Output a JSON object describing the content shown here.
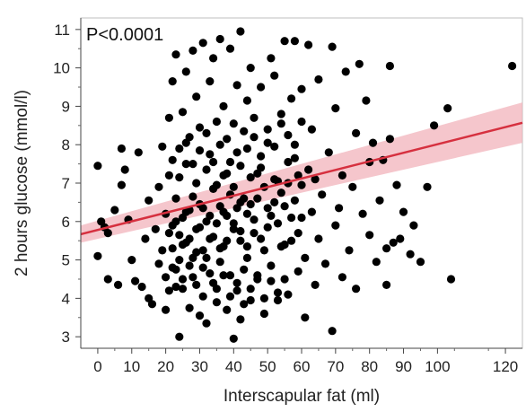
{
  "chart_data": {
    "type": "scatter",
    "title": "",
    "xlabel": "Interscapular fat (ml)",
    "ylabel": "2 hours glucose (mmol/l)",
    "annotation": "P<0.0001",
    "xlim": [
      -5,
      125
    ],
    "ylim": [
      2.7,
      11.3
    ],
    "x_ticks": [
      0,
      10,
      20,
      30,
      40,
      50,
      60,
      70,
      80,
      90,
      100,
      120
    ],
    "y_ticks": [
      3,
      4,
      5,
      6,
      7,
      8,
      9,
      10,
      11
    ],
    "grid": false,
    "colors": {
      "points": "#000000",
      "fit_line": "#d6303f",
      "confidence_band": "#f2b3bb",
      "axis": "#444444",
      "frame": "#bfbfbf"
    },
    "fit": {
      "x": [
        -5,
        125
      ],
      "y": [
        5.67,
        8.57
      ],
      "ci_lower": [
        5.45,
        8.05
      ],
      "ci_upper": [
        5.9,
        9.1
      ]
    },
    "points": [
      [
        0,
        7.45
      ],
      [
        0,
        5.1
      ],
      [
        1,
        6.0
      ],
      [
        2,
        5.85
      ],
      [
        3,
        4.5
      ],
      [
        3,
        5.7
      ],
      [
        5,
        6.3
      ],
      [
        6,
        4.35
      ],
      [
        7,
        6.95
      ],
      [
        7,
        7.9
      ],
      [
        8,
        7.35
      ],
      [
        9,
        6.05
      ],
      [
        10,
        5.0
      ],
      [
        11,
        4.45
      ],
      [
        12,
        7.8
      ],
      [
        13,
        4.3
      ],
      [
        14,
        5.55
      ],
      [
        15,
        4.0
      ],
      [
        15,
        6.55
      ],
      [
        16,
        3.85
      ],
      [
        17,
        5.8
      ],
      [
        18,
        6.9
      ],
      [
        18,
        4.9
      ],
      [
        19,
        7.95
      ],
      [
        19,
        5.25
      ],
      [
        20,
        4.55
      ],
      [
        20,
        6.2
      ],
      [
        20,
        3.7
      ],
      [
        21,
        5.7
      ],
      [
        21,
        7.2
      ],
      [
        21,
        8.7
      ],
      [
        22,
        4.8
      ],
      [
        22,
        9.65
      ],
      [
        22,
        5.9
      ],
      [
        23,
        6.6
      ],
      [
        23,
        4.3
      ],
      [
        23,
        10.35
      ],
      [
        24,
        3.0
      ],
      [
        24,
        5.0
      ],
      [
        24,
        7.9
      ],
      [
        25,
        6.1
      ],
      [
        25,
        8.85
      ],
      [
        25,
        4.25
      ],
      [
        26,
        5.45
      ],
      [
        26,
        7.5
      ],
      [
        26,
        9.9
      ],
      [
        27,
        3.75
      ],
      [
        27,
        6.3
      ],
      [
        27,
        8.2
      ],
      [
        28,
        5.05
      ],
      [
        28,
        10.45
      ],
      [
        28,
        4.55
      ],
      [
        29,
        7.0
      ],
      [
        29,
        5.8
      ],
      [
        29,
        9.25
      ],
      [
        30,
        3.55
      ],
      [
        30,
        6.45
      ],
      [
        30,
        8.45
      ],
      [
        31,
        5.25
      ],
      [
        31,
        4.8
      ],
      [
        31,
        10.65
      ],
      [
        32,
        7.35
      ],
      [
        32,
        6.0
      ],
      [
        32,
        3.35
      ],
      [
        33,
        5.55
      ],
      [
        33,
        9.65
      ],
      [
        33,
        7.75
      ],
      [
        34,
        4.4
      ],
      [
        34,
        6.85
      ],
      [
        34,
        10.25
      ],
      [
        35,
        5.95
      ],
      [
        35,
        3.9
      ],
      [
        35,
        8.6
      ],
      [
        36,
        6.4
      ],
      [
        36,
        4.95
      ],
      [
        36,
        10.75
      ],
      [
        37,
        7.2
      ],
      [
        37,
        5.35
      ],
      [
        37,
        9.0
      ],
      [
        38,
        3.7
      ],
      [
        38,
        6.15
      ],
      [
        38,
        8.15
      ],
      [
        39,
        4.6
      ],
      [
        39,
        7.55
      ],
      [
        39,
        10.5
      ],
      [
        40,
        5.8
      ],
      [
        40,
        2.95
      ],
      [
        40,
        6.9
      ],
      [
        41,
        4.2
      ],
      [
        41,
        9.55
      ],
      [
        41,
        7.8
      ],
      [
        42,
        5.5
      ],
      [
        42,
        3.45
      ],
      [
        42,
        6.5
      ],
      [
        42,
        10.95
      ],
      [
        43,
        8.35
      ],
      [
        43,
        4.75
      ],
      [
        44,
        6.2
      ],
      [
        44,
        5.05
      ],
      [
        44,
        9.15
      ],
      [
        45,
        7.15
      ],
      [
        45,
        3.95
      ],
      [
        45,
        10.0
      ],
      [
        46,
        5.7
      ],
      [
        46,
        8.7
      ],
      [
        47,
        4.5
      ],
      [
        47,
        6.6
      ],
      [
        48,
        9.5
      ],
      [
        48,
        7.4
      ],
      [
        49,
        5.25
      ],
      [
        49,
        3.6
      ],
      [
        50,
        8.05
      ],
      [
        50,
        6.35
      ],
      [
        51,
        10.25
      ],
      [
        51,
        4.85
      ],
      [
        52,
        7.1
      ],
      [
        52,
        9.8
      ],
      [
        53,
        5.95
      ],
      [
        53,
        4.15
      ],
      [
        54,
        8.55
      ],
      [
        54,
        6.75
      ],
      [
        55,
        10.7
      ],
      [
        55,
        5.4
      ],
      [
        56,
        7.55
      ],
      [
        56,
        4.1
      ],
      [
        57,
        9.2
      ],
      [
        57,
        6.1
      ],
      [
        58,
        8.0
      ],
      [
        58,
        10.7
      ],
      [
        59,
        5.7
      ],
      [
        59,
        4.7
      ],
      [
        60,
        6.95
      ],
      [
        60,
        9.45
      ],
      [
        61,
        3.5
      ],
      [
        61,
        5.05
      ],
      [
        62,
        7.35
      ],
      [
        62,
        10.6
      ],
      [
        63,
        6.25
      ],
      [
        63,
        8.4
      ],
      [
        64,
        4.35
      ],
      [
        64,
        7.1
      ],
      [
        65,
        5.55
      ],
      [
        65,
        9.7
      ],
      [
        66,
        6.7
      ],
      [
        67,
        4.9
      ],
      [
        68,
        7.8
      ],
      [
        69,
        3.15
      ],
      [
        69,
        10.55
      ],
      [
        70,
        5.9
      ],
      [
        70,
        8.95
      ],
      [
        71,
        6.35
      ],
      [
        72,
        4.55
      ],
      [
        72,
        7.2
      ],
      [
        73,
        9.9
      ],
      [
        74,
        5.25
      ],
      [
        75,
        6.9
      ],
      [
        76,
        8.3
      ],
      [
        76,
        4.25
      ],
      [
        77,
        10.1
      ],
      [
        78,
        6.2
      ],
      [
        79,
        9.15
      ],
      [
        80,
        7.55
      ],
      [
        80,
        5.65
      ],
      [
        81,
        8.05
      ],
      [
        82,
        4.95
      ],
      [
        83,
        6.55
      ],
      [
        84,
        7.6
      ],
      [
        85,
        5.3
      ],
      [
        85,
        4.35
      ],
      [
        86,
        8.15
      ],
      [
        86,
        10.05
      ],
      [
        87,
        5.45
      ],
      [
        88,
        6.95
      ],
      [
        89,
        5.55
      ],
      [
        90,
        6.25
      ],
      [
        92,
        5.15
      ],
      [
        93,
        5.9
      ],
      [
        95,
        4.95
      ],
      [
        97,
        6.9
      ],
      [
        99,
        8.5
      ],
      [
        103,
        8.95
      ],
      [
        104,
        4.5
      ],
      [
        122,
        10.05
      ],
      [
        22,
        5.3
      ],
      [
        23,
        6.0
      ],
      [
        24,
        5.65
      ],
      [
        25,
        5.4
      ],
      [
        26,
        6.25
      ],
      [
        27,
        5.55
      ],
      [
        28,
        6.65
      ],
      [
        29,
        5.2
      ],
      [
        30,
        5.85
      ],
      [
        31,
        6.35
      ],
      [
        32,
        5.05
      ],
      [
        33,
        6.15
      ],
      [
        34,
        5.6
      ],
      [
        35,
        6.95
      ],
      [
        36,
        5.3
      ],
      [
        37,
        6.25
      ],
      [
        38,
        5.5
      ],
      [
        39,
        6.7
      ],
      [
        40,
        5.95
      ],
      [
        41,
        6.35
      ],
      [
        42,
        5.75
      ],
      [
        43,
        6.6
      ],
      [
        44,
        5.35
      ],
      [
        45,
        6.45
      ],
      [
        46,
        6.05
      ],
      [
        47,
        7.25
      ],
      [
        48,
        5.55
      ],
      [
        49,
        6.9
      ],
      [
        50,
        5.85
      ],
      [
        51,
        6.15
      ],
      [
        52,
        6.5
      ],
      [
        53,
        7.05
      ],
      [
        54,
        5.35
      ],
      [
        55,
        6.4
      ],
      [
        56,
        7.0
      ],
      [
        57,
        5.5
      ],
      [
        58,
        6.55
      ],
      [
        59,
        7.2
      ],
      [
        60,
        6.1
      ],
      [
        21,
        4.2
      ],
      [
        23,
        4.75
      ],
      [
        25,
        4.5
      ],
      [
        27,
        4.85
      ],
      [
        29,
        4.35
      ],
      [
        31,
        4.05
      ],
      [
        33,
        4.65
      ],
      [
        35,
        4.25
      ],
      [
        37,
        4.6
      ],
      [
        39,
        4.05
      ],
      [
        41,
        4.4
      ],
      [
        43,
        3.85
      ],
      [
        45,
        4.25
      ],
      [
        47,
        4.6
      ],
      [
        49,
        4.0
      ],
      [
        51,
        4.45
      ],
      [
        53,
        3.95
      ],
      [
        55,
        4.5
      ],
      [
        22,
        7.6
      ],
      [
        24,
        7.15
      ],
      [
        26,
        8.05
      ],
      [
        28,
        7.5
      ],
      [
        30,
        7.85
      ],
      [
        32,
        8.3
      ],
      [
        34,
        7.55
      ],
      [
        36,
        8.0
      ],
      [
        38,
        7.25
      ],
      [
        40,
        8.55
      ],
      [
        42,
        7.45
      ],
      [
        44,
        7.9
      ],
      [
        46,
        8.2
      ],
      [
        48,
        7.7
      ],
      [
        50,
        8.4
      ],
      [
        52,
        7.95
      ],
      [
        54,
        8.8
      ],
      [
        56,
        8.25
      ],
      [
        58,
        7.65
      ],
      [
        60,
        8.6
      ]
    ]
  }
}
